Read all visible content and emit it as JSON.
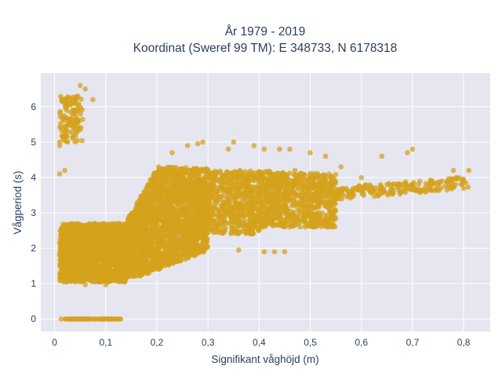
{
  "chart_data": {
    "type": "scatter",
    "title_line1": "År 1979 - 2019",
    "title_line2": "Koordinat (Sweref 99 TM): E 348733, N 6178318",
    "xlabel": "Signifikant våghöjd (m)",
    "ylabel": "Vågperiod (s)",
    "xlim": [
      -0.027,
      0.852
    ],
    "ylim": [
      -0.35,
      6.95
    ],
    "x_ticks": [
      0,
      0.1,
      0.2,
      0.3,
      0.4,
      0.5,
      0.6,
      0.7,
      0.8
    ],
    "x_tick_labels": [
      "0",
      "0,1",
      "0,2",
      "0,3",
      "0,4",
      "0,5",
      "0,6",
      "0,7",
      "0,8"
    ],
    "y_ticks": [
      0,
      1,
      2,
      3,
      4,
      5,
      6
    ],
    "y_tick_labels": [
      "0",
      "1",
      "2",
      "3",
      "4",
      "5",
      "6"
    ],
    "grid": true,
    "legend": "none",
    "marker_color": "#D4A21C",
    "plot_bg": "#E5E6EF",
    "point_clusters": [
      {
        "desc": "zero-period readings",
        "x": [
          0.01,
          0.13
        ],
        "y": [
          0,
          0
        ],
        "n": 60
      },
      {
        "desc": "low-height high-period cluster",
        "x": [
          0.01,
          0.055
        ],
        "y": [
          5.0,
          6.3
        ],
        "n": 120
      },
      {
        "desc": "main body low heights",
        "x": [
          0.01,
          0.14
        ],
        "y": [
          1.05,
          2.7
        ],
        "n": 1800
      },
      {
        "desc": "main body mid heights",
        "x": [
          0.14,
          0.3
        ],
        "y": [
          1.2,
          4.3
        ],
        "n": 2200
      },
      {
        "desc": "main body upper heights",
        "x": [
          0.3,
          0.55
        ],
        "y": [
          2.4,
          4.2
        ],
        "n": 1400
      },
      {
        "desc": "high-height tail",
        "x": [
          0.55,
          0.81
        ],
        "y": [
          3.4,
          4.2
        ],
        "n": 200
      }
    ],
    "points": [
      [
        0.05,
        6.6
      ],
      [
        0.06,
        6.5
      ],
      [
        0.075,
        6.2
      ],
      [
        0.02,
        6.2
      ],
      [
        0.01,
        4.9
      ],
      [
        0.01,
        5.0
      ],
      [
        0.02,
        4.2
      ],
      [
        0.01,
        4.1
      ],
      [
        0.23,
        4.7
      ],
      [
        0.26,
        4.9
      ],
      [
        0.28,
        4.95
      ],
      [
        0.29,
        5.0
      ],
      [
        0.34,
        4.8
      ],
      [
        0.35,
        5.0
      ],
      [
        0.39,
        4.9
      ],
      [
        0.41,
        4.8
      ],
      [
        0.44,
        4.8
      ],
      [
        0.46,
        4.8
      ],
      [
        0.5,
        4.7
      ],
      [
        0.53,
        4.6
      ],
      [
        0.56,
        4.3
      ],
      [
        0.64,
        4.6
      ],
      [
        0.69,
        4.7
      ],
      [
        0.7,
        4.8
      ],
      [
        0.78,
        4.2
      ],
      [
        0.81,
        4.2
      ],
      [
        0.8,
        3.9
      ],
      [
        0.43,
        1.9
      ],
      [
        0.36,
        1.95
      ],
      [
        0.12,
        1.25
      ],
      [
        0.1,
        0.97
      ],
      [
        0.06,
        0.97
      ],
      [
        0.41,
        1.9
      ],
      [
        0.45,
        1.9
      ],
      [
        0.47,
        4.2
      ],
      [
        0.6,
        4.0
      ]
    ]
  }
}
